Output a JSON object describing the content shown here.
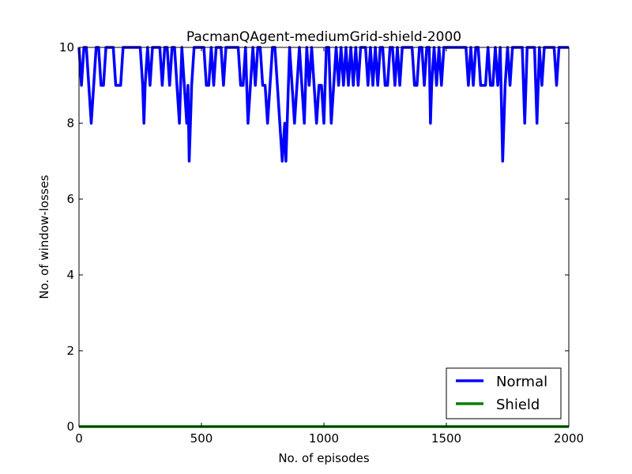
{
  "chart_data": {
    "type": "line",
    "title": "PacmanQAgent-mediumGrid-shield-2000",
    "xlabel": "No. of episodes",
    "ylabel": "No. of window-losses",
    "xlim": [
      0,
      2000
    ],
    "ylim": [
      0,
      10
    ],
    "xticks": [
      0,
      500,
      1000,
      1500,
      2000
    ],
    "yticks": [
      0,
      2,
      4,
      6,
      8,
      10
    ],
    "grid": false,
    "legend": {
      "position": "bottom-right"
    },
    "series": [
      {
        "name": "Normal",
        "color": "#0000ff",
        "points": [
          [
            0,
            10
          ],
          [
            10,
            9
          ],
          [
            20,
            10
          ],
          [
            30,
            10
          ],
          [
            40,
            9
          ],
          [
            50,
            8
          ],
          [
            60,
            9
          ],
          [
            70,
            10
          ],
          [
            80,
            10
          ],
          [
            90,
            9
          ],
          [
            100,
            9
          ],
          [
            110,
            10
          ],
          [
            120,
            10
          ],
          [
            130,
            10
          ],
          [
            140,
            10
          ],
          [
            150,
            9
          ],
          [
            160,
            9
          ],
          [
            170,
            9
          ],
          [
            180,
            10
          ],
          [
            190,
            10
          ],
          [
            200,
            10
          ],
          [
            210,
            10
          ],
          [
            220,
            10
          ],
          [
            230,
            10
          ],
          [
            240,
            10
          ],
          [
            250,
            10
          ],
          [
            260,
            9
          ],
          [
            265,
            8
          ],
          [
            270,
            9
          ],
          [
            280,
            10
          ],
          [
            290,
            9
          ],
          [
            300,
            10
          ],
          [
            310,
            10
          ],
          [
            320,
            10
          ],
          [
            330,
            10
          ],
          [
            340,
            9
          ],
          [
            350,
            10
          ],
          [
            360,
            10
          ],
          [
            370,
            9
          ],
          [
            380,
            10
          ],
          [
            390,
            10
          ],
          [
            400,
            9
          ],
          [
            410,
            8
          ],
          [
            420,
            10
          ],
          [
            430,
            9
          ],
          [
            440,
            8
          ],
          [
            445,
            9
          ],
          [
            450,
            7
          ],
          [
            460,
            9
          ],
          [
            470,
            10
          ],
          [
            480,
            10
          ],
          [
            490,
            10
          ],
          [
            500,
            10
          ],
          [
            510,
            10
          ],
          [
            520,
            9
          ],
          [
            530,
            9
          ],
          [
            540,
            10
          ],
          [
            550,
            9
          ],
          [
            560,
            10
          ],
          [
            570,
            10
          ],
          [
            580,
            10
          ],
          [
            590,
            9
          ],
          [
            600,
            10
          ],
          [
            610,
            10
          ],
          [
            620,
            10
          ],
          [
            630,
            10
          ],
          [
            640,
            10
          ],
          [
            650,
            10
          ],
          [
            660,
            9
          ],
          [
            670,
            9
          ],
          [
            680,
            10
          ],
          [
            690,
            8
          ],
          [
            700,
            9
          ],
          [
            710,
            10
          ],
          [
            720,
            9
          ],
          [
            730,
            10
          ],
          [
            740,
            10
          ],
          [
            750,
            9
          ],
          [
            760,
            9
          ],
          [
            770,
            8
          ],
          [
            780,
            9
          ],
          [
            790,
            10
          ],
          [
            800,
            10
          ],
          [
            810,
            9
          ],
          [
            820,
            8
          ],
          [
            830,
            7
          ],
          [
            840,
            8
          ],
          [
            845,
            7
          ],
          [
            850,
            8
          ],
          [
            860,
            10
          ],
          [
            870,
            9
          ],
          [
            880,
            8
          ],
          [
            890,
            9
          ],
          [
            900,
            10
          ],
          [
            910,
            9
          ],
          [
            920,
            8
          ],
          [
            930,
            10
          ],
          [
            940,
            9
          ],
          [
            950,
            10
          ],
          [
            960,
            9
          ],
          [
            970,
            8
          ],
          [
            980,
            9
          ],
          [
            990,
            9
          ],
          [
            1000,
            8
          ],
          [
            1010,
            10
          ],
          [
            1020,
            10
          ],
          [
            1030,
            8
          ],
          [
            1040,
            9
          ],
          [
            1050,
            10
          ],
          [
            1060,
            9
          ],
          [
            1070,
            10
          ],
          [
            1080,
            9
          ],
          [
            1090,
            10
          ],
          [
            1100,
            9
          ],
          [
            1110,
            10
          ],
          [
            1120,
            9
          ],
          [
            1130,
            10
          ],
          [
            1140,
            9
          ],
          [
            1150,
            10
          ],
          [
            1160,
            10
          ],
          [
            1170,
            10
          ],
          [
            1180,
            9
          ],
          [
            1190,
            10
          ],
          [
            1200,
            9
          ],
          [
            1210,
            10
          ],
          [
            1220,
            9
          ],
          [
            1230,
            10
          ],
          [
            1240,
            10
          ],
          [
            1250,
            9
          ],
          [
            1260,
            9
          ],
          [
            1270,
            10
          ],
          [
            1280,
            10
          ],
          [
            1290,
            9
          ],
          [
            1300,
            10
          ],
          [
            1310,
            9
          ],
          [
            1320,
            10
          ],
          [
            1330,
            10
          ],
          [
            1340,
            10
          ],
          [
            1350,
            10
          ],
          [
            1360,
            10
          ],
          [
            1370,
            9
          ],
          [
            1380,
            9
          ],
          [
            1390,
            10
          ],
          [
            1400,
            10
          ],
          [
            1410,
            9
          ],
          [
            1420,
            10
          ],
          [
            1430,
            10
          ],
          [
            1435,
            8
          ],
          [
            1440,
            9
          ],
          [
            1450,
            10
          ],
          [
            1460,
            9
          ],
          [
            1470,
            10
          ],
          [
            1480,
            9
          ],
          [
            1490,
            10
          ],
          [
            1500,
            10
          ],
          [
            1510,
            10
          ],
          [
            1520,
            10
          ],
          [
            1530,
            10
          ],
          [
            1540,
            10
          ],
          [
            1550,
            10
          ],
          [
            1560,
            10
          ],
          [
            1570,
            10
          ],
          [
            1580,
            10
          ],
          [
            1590,
            9
          ],
          [
            1600,
            10
          ],
          [
            1610,
            9
          ],
          [
            1620,
            10
          ],
          [
            1630,
            10
          ],
          [
            1640,
            9
          ],
          [
            1650,
            9
          ],
          [
            1660,
            9
          ],
          [
            1670,
            10
          ],
          [
            1680,
            9
          ],
          [
            1690,
            9
          ],
          [
            1700,
            10
          ],
          [
            1710,
            9
          ],
          [
            1720,
            10
          ],
          [
            1730,
            7
          ],
          [
            1740,
            9
          ],
          [
            1750,
            10
          ],
          [
            1760,
            9
          ],
          [
            1770,
            10
          ],
          [
            1780,
            10
          ],
          [
            1790,
            10
          ],
          [
            1800,
            10
          ],
          [
            1810,
            10
          ],
          [
            1820,
            8
          ],
          [
            1830,
            10
          ],
          [
            1840,
            10
          ],
          [
            1850,
            10
          ],
          [
            1860,
            10
          ],
          [
            1870,
            8
          ],
          [
            1880,
            10
          ],
          [
            1890,
            9
          ],
          [
            1900,
            10
          ],
          [
            1910,
            10
          ],
          [
            1920,
            10
          ],
          [
            1930,
            10
          ],
          [
            1940,
            10
          ],
          [
            1950,
            9
          ],
          [
            1960,
            10
          ],
          [
            1970,
            10
          ],
          [
            1980,
            10
          ],
          [
            1990,
            10
          ],
          [
            2000,
            10
          ]
        ]
      },
      {
        "name": "Shield",
        "color": "#008000",
        "points": [
          [
            0,
            0
          ],
          [
            2000,
            0
          ]
        ]
      }
    ]
  }
}
